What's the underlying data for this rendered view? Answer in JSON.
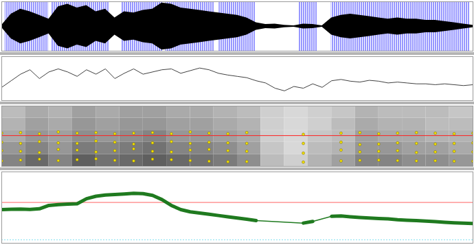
{
  "chart_data": [
    {
      "type": "area",
      "tick_labels": false,
      "xlim": [
        0,
        100
      ],
      "ylim": [
        -1,
        1
      ],
      "series": [
        {
          "type": "pulses",
          "color": "#2f2fff",
          "intervals": [
            [
              0.7,
              9.9
            ],
            [
              10.6,
              22.9
            ],
            [
              25.4,
              34.1
            ],
            [
              34.8,
              45.2
            ],
            [
              46.1,
              53.9
            ],
            [
              63,
              67
            ],
            [
              69.9,
              99.3
            ]
          ]
        },
        {
          "type": "area",
          "color": "#000000",
          "x": [
            0,
            2,
            4,
            6,
            8,
            10,
            12,
            14,
            16,
            18,
            20,
            22,
            24,
            26,
            28,
            30,
            32,
            34,
            36,
            38,
            40,
            42,
            44,
            46,
            48,
            50,
            52,
            54,
            56,
            58,
            60,
            62,
            64,
            66,
            68,
            70,
            72,
            74,
            76,
            78,
            80,
            82,
            84,
            86,
            88,
            90,
            92,
            94,
            96,
            98,
            100
          ],
          "values": [
            0.05,
            0.5,
            0.7,
            0.6,
            0.45,
            0.3,
            0.8,
            0.9,
            0.75,
            0.85,
            0.6,
            0.7,
            0.35,
            0.6,
            0.55,
            0.65,
            0.7,
            0.95,
            0.9,
            0.75,
            0.7,
            0.65,
            0.6,
            0.55,
            0.5,
            0.45,
            0.35,
            0.15,
            0.08,
            0.1,
            0.05,
            0.03,
            0.1,
            0.08,
            0.03,
            0.35,
            0.45,
            0.5,
            0.45,
            0.4,
            0.35,
            0.3,
            0.35,
            0.3,
            0.3,
            0.25,
            0.25,
            0.2,
            0.15,
            0.1,
            0.05
          ]
        }
      ]
    },
    {
      "type": "line",
      "tick_labels": false,
      "xlim": [
        0,
        100
      ],
      "ylim": [
        0,
        100
      ],
      "series": [
        {
          "type": "line",
          "color": "#404040",
          "x": [
            0,
            2,
            4,
            6,
            8,
            10,
            12,
            14,
            16,
            18,
            20,
            22,
            24,
            26,
            28,
            30,
            32,
            34,
            36,
            38,
            40,
            42,
            44,
            46,
            48,
            50,
            52,
            54,
            56,
            58,
            60,
            62,
            64,
            66,
            68,
            70,
            72,
            74,
            76,
            78,
            80,
            82,
            84,
            86,
            88,
            90,
            92,
            94,
            96,
            98,
            100
          ],
          "values": [
            30,
            45,
            60,
            70,
            50,
            65,
            72,
            65,
            55,
            70,
            60,
            72,
            50,
            62,
            72,
            60,
            65,
            70,
            72,
            62,
            68,
            74,
            70,
            62,
            58,
            55,
            52,
            45,
            40,
            28,
            22,
            32,
            28,
            38,
            30,
            45,
            48,
            44,
            42,
            46,
            44,
            40,
            42,
            40,
            38,
            38,
            36,
            38,
            36,
            34,
            36
          ]
        }
      ]
    },
    {
      "type": "heatmap",
      "tick_labels": false,
      "xlim": [
        0,
        100
      ],
      "ylim": [
        0,
        5000
      ],
      "x_bins": [
        0,
        5,
        10,
        15,
        20,
        25,
        30,
        35,
        40,
        45,
        50,
        55,
        60,
        65,
        70,
        75,
        80,
        85,
        90,
        95,
        100
      ],
      "y_bins": [
        0,
        1000,
        2000,
        3000,
        4000,
        5000
      ],
      "cell_range": [
        0,
        1
      ],
      "cells": [
        [
          0.6,
          0.75,
          0.6,
          0.8,
          0.7,
          0.75,
          0.8,
          0.75,
          0.7,
          0.65,
          0.55,
          0.3,
          0.2,
          0.35,
          0.45,
          0.6,
          0.6,
          0.55,
          0.55,
          0.5
        ],
        [
          0.5,
          0.6,
          0.5,
          0.65,
          0.6,
          0.65,
          0.7,
          0.6,
          0.6,
          0.55,
          0.45,
          0.25,
          0.15,
          0.3,
          0.35,
          0.5,
          0.5,
          0.45,
          0.45,
          0.4
        ],
        [
          0.4,
          0.5,
          0.45,
          0.55,
          0.5,
          0.55,
          0.6,
          0.5,
          0.5,
          0.45,
          0.4,
          0.2,
          0.15,
          0.25,
          0.3,
          0.45,
          0.4,
          0.4,
          0.35,
          0.35
        ],
        [
          0.35,
          0.45,
          0.4,
          0.5,
          0.45,
          0.5,
          0.5,
          0.45,
          0.45,
          0.4,
          0.35,
          0.2,
          0.15,
          0.2,
          0.3,
          0.4,
          0.35,
          0.35,
          0.3,
          0.3
        ],
        [
          0.3,
          0.4,
          0.35,
          0.45,
          0.4,
          0.45,
          0.45,
          0.4,
          0.4,
          0.35,
          0.3,
          0.2,
          0.15,
          0.2,
          0.25,
          0.35,
          0.3,
          0.3,
          0.3,
          0.25
        ]
      ],
      "series": [
        {
          "type": "rule",
          "color": "#ff2020",
          "values": [
            2550
          ]
        },
        {
          "type": "scatter",
          "marker": "dot",
          "color": "#f0e000",
          "x": [
            0,
            4,
            8,
            12,
            16,
            20,
            24,
            28,
            32,
            36,
            40,
            44,
            48,
            52,
            56,
            60,
            64,
            68,
            72,
            76,
            80,
            84,
            88,
            92,
            96,
            100
          ],
          "values": [
            450,
            520,
            600,
            480,
            550,
            620,
            500,
            450,
            600,
            550,
            480,
            420,
            380,
            400,
            null,
            null,
            350,
            null,
            450,
            500,
            520,
            480,
            450,
            470,
            430,
            420
          ]
        },
        {
          "type": "scatter",
          "marker": "dot",
          "color": "#f0e000",
          "x": [
            0,
            4,
            8,
            12,
            16,
            20,
            24,
            28,
            32,
            36,
            40,
            44,
            48,
            52,
            56,
            60,
            64,
            68,
            72,
            76,
            80,
            84,
            88,
            92,
            96,
            100
          ],
          "values": [
            1300,
            1250,
            1150,
            1400,
            1350,
            1200,
            1300,
            1450,
            1250,
            1200,
            1350,
            1400,
            1300,
            1250,
            null,
            null,
            1100,
            null,
            1350,
            1200,
            1250,
            1300,
            1150,
            1200,
            1250,
            1200
          ]
        },
        {
          "type": "scatter",
          "marker": "dot",
          "color": "#f0e000",
          "x": [
            0,
            4,
            8,
            12,
            16,
            20,
            24,
            28,
            32,
            36,
            40,
            44,
            48,
            52,
            56,
            60,
            64,
            68,
            72,
            76,
            80,
            84,
            88,
            92,
            96,
            100
          ],
          "values": [
            2000,
            1900,
            2050,
            1950,
            1900,
            2100,
            2000,
            1850,
            1950,
            2050,
            1900,
            2000,
            1950,
            1900,
            null,
            null,
            1900,
            null,
            2000,
            1800,
            1850,
            1950,
            1900,
            1850,
            1900,
            1950
          ]
        },
        {
          "type": "scatter",
          "marker": "dot",
          "color": "#f0e000",
          "x": [
            0,
            4,
            8,
            12,
            16,
            20,
            24,
            28,
            32,
            36,
            40,
            44,
            48,
            52,
            56,
            60,
            64,
            68,
            72,
            76,
            80,
            84,
            88,
            92,
            96,
            100
          ],
          "values": [
            2750,
            2800,
            2700,
            2850,
            2750,
            2800,
            2700,
            2750,
            2800,
            2700,
            2850,
            2750,
            2700,
            2800,
            null,
            null,
            2650,
            null,
            2750,
            2800,
            2700,
            2750,
            2800,
            2750,
            2700,
            2750
          ]
        }
      ]
    },
    {
      "type": "line",
      "tick_labels": false,
      "xlim": [
        0,
        100
      ],
      "ylim": [
        75,
        500
      ],
      "series": [
        {
          "type": "rule",
          "color": "#ff6060",
          "values": [
            318
          ]
        },
        {
          "type": "rule",
          "color": "#80e0f0",
          "line_style": "dotted",
          "values": [
            95
          ]
        },
        {
          "type": "line",
          "color": "#1f7a1f",
          "x": [
            0,
            2,
            4,
            6,
            8,
            10,
            12,
            14,
            16,
            18,
            20,
            22,
            24,
            26,
            28,
            30,
            32,
            34,
            36,
            38,
            40,
            42,
            44,
            46,
            48,
            50,
            52,
            54,
            56,
            58,
            60,
            62,
            64,
            66,
            68,
            70,
            72,
            74,
            76,
            78,
            80,
            82,
            84,
            86,
            88,
            90,
            92,
            94,
            96,
            98,
            100
          ],
          "values": [
            275,
            277,
            278,
            276,
            280,
            300,
            305,
            308,
            310,
            340,
            355,
            362,
            365,
            368,
            372,
            370,
            360,
            335,
            300,
            275,
            262,
            255,
            248,
            240,
            232,
            225,
            218,
            210,
            null,
            null,
            null,
            null,
            195,
            205,
            null,
            235,
            237,
            232,
            228,
            225,
            222,
            220,
            215,
            212,
            210,
            207,
            204,
            200,
            197,
            195,
            192
          ]
        }
      ]
    }
  ]
}
